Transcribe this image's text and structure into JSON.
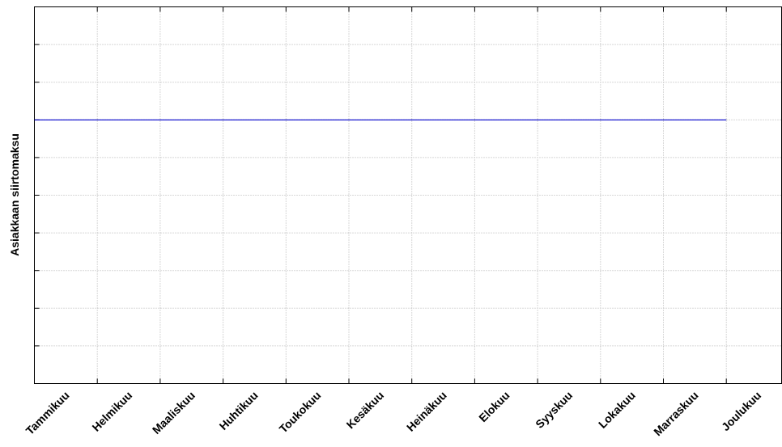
{
  "chart_data": {
    "type": "line",
    "y_label": "Asiakkaan siirtomaksu",
    "categories": [
      "Tammikuu",
      "Helmikuu",
      "Maaliskuu",
      "Huhtikuu",
      "Toukokuu",
      "Kesäkuu",
      "Heinäkuu",
      "Elokuu",
      "Syyskuu",
      "Lokakuu",
      "Marraskuu",
      "Joulukuu"
    ],
    "values": [
      7,
      7,
      7,
      7,
      7,
      7,
      7,
      7,
      7,
      7,
      7,
      7
    ],
    "color": "#0000cc",
    "ylim": [
      0,
      10
    ],
    "yticks": [
      0,
      1,
      2,
      3,
      4,
      5,
      6,
      7,
      8,
      9,
      10
    ],
    "grid": true
  }
}
